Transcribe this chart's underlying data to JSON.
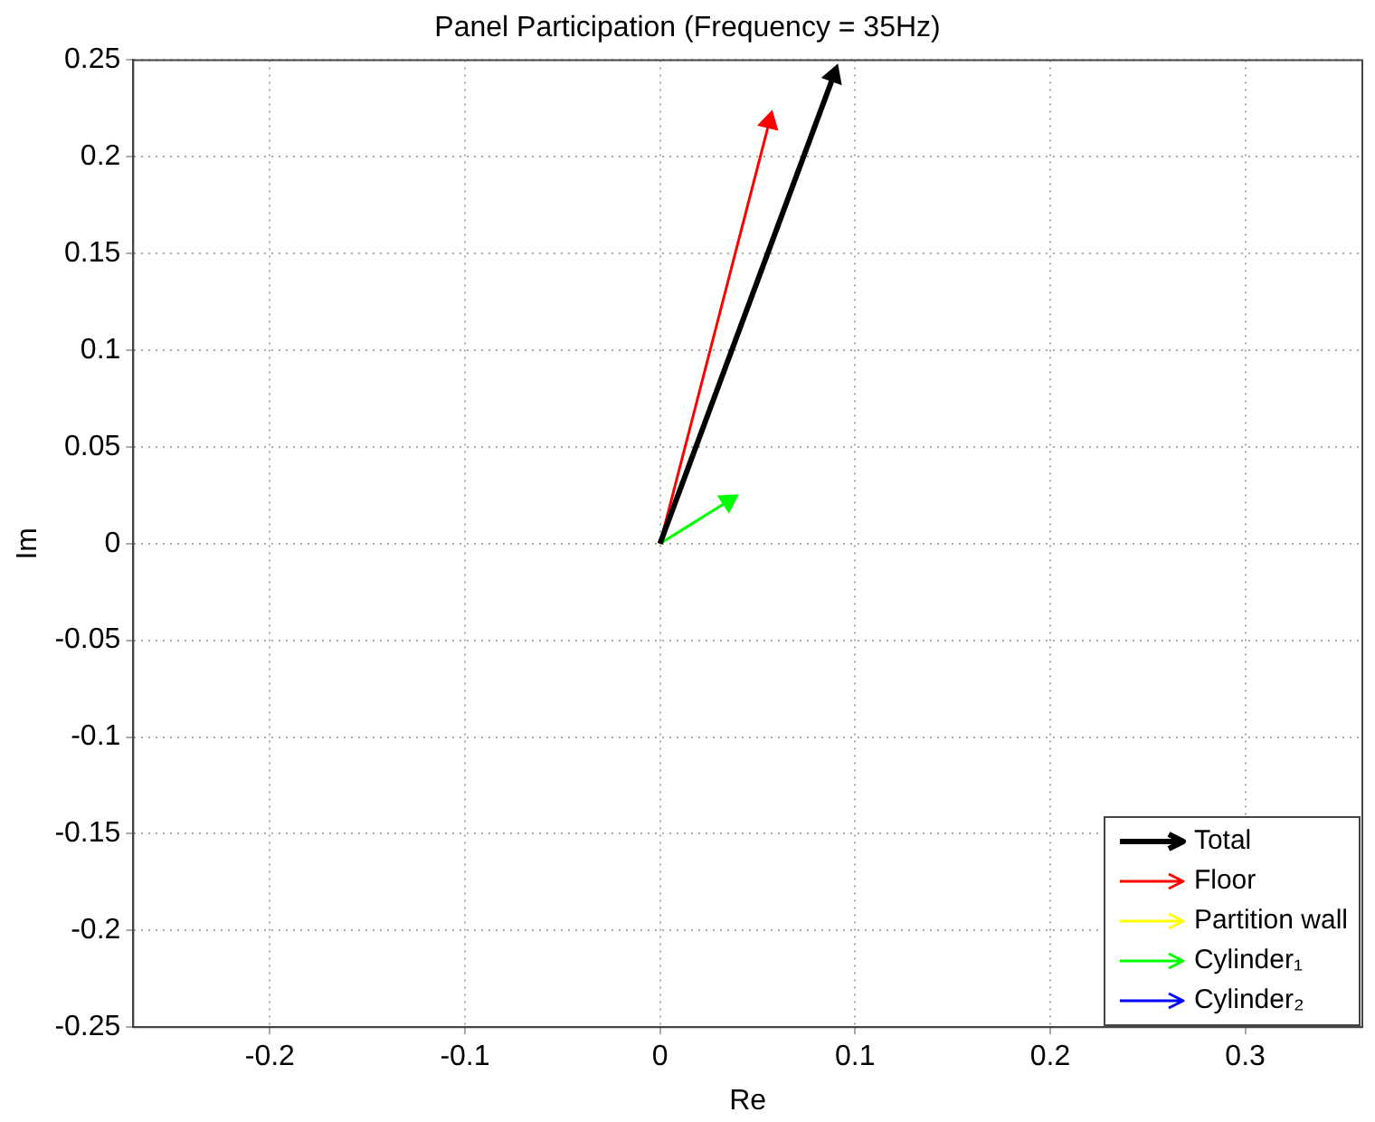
{
  "chart_data": {
    "type": "line",
    "title": "Panel Participation (Frequency = 35Hz)",
    "xlabel": "Re",
    "ylabel": "Im",
    "series": [
      {
        "name": "Total",
        "color": "#000000",
        "x": [
          0,
          0.089
        ],
        "values": [
          0,
          0.242
        ]
      },
      {
        "name": "Floor",
        "color": "#ff0000",
        "x": [
          0,
          0.056
        ],
        "values": [
          0,
          0.218
        ]
      },
      {
        "name": "Partition wall",
        "color": "#ffff00",
        "values": [
          null,
          null
        ]
      },
      {
        "name": "Cylinder₁",
        "color": "#00ff00",
        "x": [
          0,
          0.035
        ],
        "values": [
          0,
          0.022
        ]
      },
      {
        "name": "Cylinder₂",
        "color": "#0000ff",
        "values": [
          null,
          null
        ]
      }
    ],
    "xlim": [
      -0.27,
      0.36
    ],
    "xticks": [
      {
        "value": -0.2,
        "label": "-0.2"
      },
      {
        "value": -0.1,
        "label": "-0.1"
      },
      0,
      0.1,
      0.2,
      0.3
    ],
    "ylim": [
      -0.25,
      0.25
    ],
    "yticks": [
      -0.25,
      -0.2,
      -0.15,
      -0.1,
      -0.05,
      0,
      0.05,
      0.1,
      0.15,
      0.2,
      0.25
    ],
    "grid": true,
    "legend": "bottom right",
    "line_style": "solid"
  }
}
